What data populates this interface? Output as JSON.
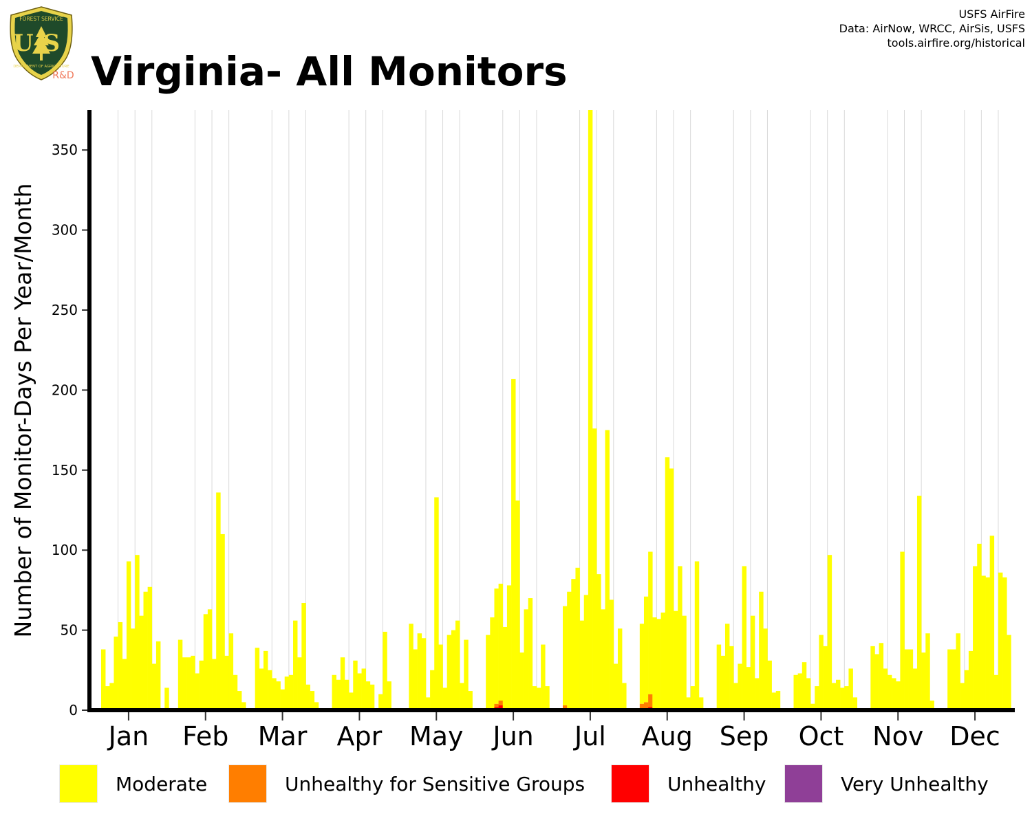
{
  "header": {
    "title": "Virginia- All Monitors",
    "logo_text": {
      "top": "FOREST SERVICE",
      "letters": "US",
      "bottom": "DEPARTMENT OF AGRICULTURE",
      "tag": "R&D"
    },
    "credits": [
      "USFS AirFire",
      "Data: AirNow, WRCC, AirSis, USFS",
      "tools.airfire.org/historical"
    ]
  },
  "colors": {
    "moderate": "#ffff00",
    "usg": "#ff7e00",
    "unhealthy": "#ff0000",
    "very_unhealthy": "#8f3f97",
    "logo_green": "#1f4a2a",
    "logo_gold": "#e8d34a"
  },
  "chart_data": {
    "type": "bar",
    "stacked": true,
    "ylabel": "Number of Monitor-Days Per Year/Month",
    "ylim": [
      0,
      375
    ],
    "yticks": [
      0,
      50,
      100,
      150,
      200,
      250,
      300,
      350
    ],
    "grid": "vertical lines between years",
    "legend_position": "bottom",
    "months": [
      {
        "label": "Jan",
        "moderate": [
          38,
          15,
          17,
          46,
          55,
          32,
          93,
          51,
          97,
          59,
          74,
          77,
          29,
          43,
          0,
          14
        ],
        "usg": [],
        "unhealthy": []
      },
      {
        "label": "Feb",
        "moderate": [
          44,
          33,
          33,
          34,
          23,
          31,
          60,
          63,
          32,
          136,
          110,
          34,
          48,
          22,
          12,
          5
        ],
        "usg": [],
        "unhealthy": []
      },
      {
        "label": "Mar",
        "moderate": [
          39,
          26,
          37,
          25,
          20,
          18,
          13,
          21,
          22,
          56,
          33,
          67,
          16,
          12,
          5,
          0
        ],
        "usg": [],
        "unhealthy": []
      },
      {
        "label": "Apr",
        "moderate": [
          22,
          19,
          33,
          19,
          11,
          31,
          23,
          26,
          18,
          16,
          0,
          10,
          49,
          18,
          0,
          0
        ],
        "usg": [],
        "unhealthy": []
      },
      {
        "label": "May",
        "moderate": [
          54,
          38,
          48,
          45,
          8,
          25,
          133,
          41,
          14,
          47,
          50,
          56,
          17,
          44,
          12,
          0
        ],
        "usg": [],
        "unhealthy": []
      },
      {
        "label": "Jun",
        "moderate": [
          47,
          58,
          72,
          73,
          52,
          78,
          207,
          131,
          36,
          63,
          70,
          15,
          14,
          41,
          15,
          0
        ],
        "usg": [
          0,
          0,
          2,
          3,
          0,
          0,
          0,
          0,
          0,
          0,
          0,
          0,
          0,
          0,
          0,
          0
        ],
        "unhealthy": [
          0,
          0,
          2,
          3,
          0,
          0,
          0,
          0,
          0,
          0,
          0,
          0,
          0,
          0,
          0,
          0
        ]
      },
      {
        "label": "Jul",
        "moderate": [
          62,
          74,
          82,
          89,
          56,
          72,
          378,
          176,
          85,
          63,
          175,
          69,
          29,
          51,
          17,
          0
        ],
        "usg": [
          3,
          0,
          0,
          0,
          0,
          0,
          0,
          0,
          0,
          0,
          0,
          0,
          0,
          0,
          0,
          0
        ],
        "unhealthy": []
      },
      {
        "label": "Aug",
        "moderate": [
          50,
          66,
          89,
          58,
          57,
          61,
          158,
          151,
          62,
          90,
          59,
          8,
          15,
          93,
          8,
          0
        ],
        "usg": [
          4,
          5,
          8,
          0,
          0,
          0,
          0,
          0,
          0,
          0,
          0,
          0,
          0,
          0,
          0,
          0
        ],
        "unhealthy": [
          0,
          0,
          2,
          0,
          0,
          0,
          0,
          0,
          0,
          0,
          0,
          0,
          0,
          0,
          0,
          0
        ]
      },
      {
        "label": "Sep",
        "moderate": [
          41,
          34,
          54,
          40,
          17,
          29,
          90,
          27,
          59,
          20,
          74,
          51,
          31,
          11,
          12,
          0
        ],
        "usg": [],
        "unhealthy": []
      },
      {
        "label": "Oct",
        "moderate": [
          22,
          23,
          30,
          20,
          4,
          15,
          47,
          40,
          97,
          17,
          19,
          14,
          15,
          26,
          8,
          0
        ],
        "usg": [],
        "unhealthy": []
      },
      {
        "label": "Nov",
        "moderate": [
          40,
          35,
          42,
          26,
          22,
          20,
          18,
          99,
          38,
          38,
          26,
          134,
          36,
          48,
          6,
          0
        ],
        "usg": [],
        "unhealthy": []
      },
      {
        "label": "Dec",
        "moderate": [
          38,
          38,
          48,
          17,
          25,
          37,
          90,
          104,
          84,
          83,
          109,
          22,
          86,
          83,
          47,
          0
        ],
        "usg": [],
        "unhealthy": []
      }
    ],
    "legend": [
      {
        "label": "Moderate",
        "color_key": "moderate"
      },
      {
        "label": "Unhealthy for Sensitive Groups",
        "color_key": "usg"
      },
      {
        "label": "Unhealthy",
        "color_key": "unhealthy"
      },
      {
        "label": "Very Unhealthy",
        "color_key": "very_unhealthy"
      }
    ]
  }
}
